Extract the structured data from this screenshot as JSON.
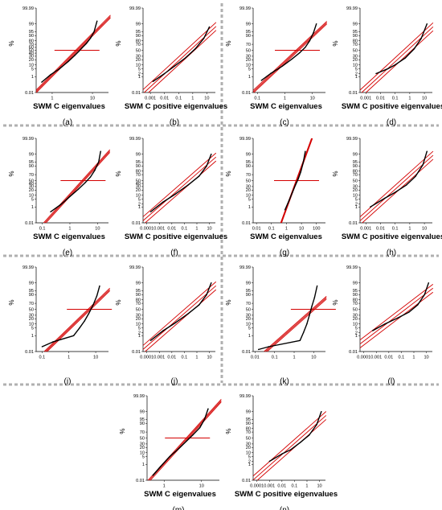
{
  "figure": {
    "colors": {
      "fit": "#d40000",
      "data": "#000000",
      "separator": "#b0b0b0"
    },
    "panels": [
      {
        "id": "a",
        "caption": "(a)",
        "xlabel": "SWM C eigenvalues",
        "ylabel": "%",
        "xticks": [
          "1",
          "10"
        ],
        "xrange": [
          0.4,
          25
        ],
        "yticks": [
          "0.01",
          "1",
          "5",
          "10",
          "20",
          "30",
          "40",
          "50",
          "60",
          "70",
          "80",
          "90",
          "95",
          "99",
          "99.99"
        ],
        "hline": true,
        "samples": [
          [
            0.55,
            0.25
          ],
          [
            0.9,
            1.5
          ],
          [
            1.5,
            5
          ],
          [
            2.5,
            16
          ],
          [
            3.6,
            32
          ],
          [
            4.5,
            45
          ],
          [
            5.5,
            58
          ],
          [
            7,
            72
          ],
          [
            9,
            86
          ],
          [
            11,
            95
          ],
          [
            13,
            99.5
          ]
        ]
      },
      {
        "id": "b",
        "caption": "(b)",
        "xlabel": "SWM C positive eigenvalues",
        "ylabel": "%",
        "xticks": [
          "0.001",
          "0.01",
          "0.1",
          "1",
          "10"
        ],
        "xrange": [
          0.0003,
          40
        ],
        "yticks": [
          "0.01",
          "1",
          "2",
          "5",
          "10",
          "20",
          "30",
          "50",
          "70",
          "80",
          "90",
          "95",
          "99",
          "99.99"
        ],
        "hline": false,
        "samples": [
          [
            0.0015,
            0.3
          ],
          [
            0.01,
            2
          ],
          [
            0.05,
            8
          ],
          [
            0.3,
            25
          ],
          [
            1.5,
            55
          ],
          [
            6,
            85
          ],
          [
            15,
            98
          ]
        ]
      },
      {
        "id": "c",
        "caption": "(c)",
        "xlabel": "SWM C eigenvalues",
        "ylabel": "%",
        "xticks": [
          "0.1",
          "1",
          "10"
        ],
        "xrange": [
          0.07,
          30
        ],
        "yticks": [
          "0.01",
          "1",
          "5",
          "10",
          "20",
          "30",
          "50",
          "70",
          "90",
          "95",
          "99",
          "99.99"
        ],
        "hline": true,
        "samples": [
          [
            0.14,
            0.4
          ],
          [
            0.3,
            2
          ],
          [
            0.8,
            8
          ],
          [
            1.8,
            22
          ],
          [
            3.5,
            42
          ],
          [
            5.5,
            60
          ],
          [
            8,
            80
          ],
          [
            11,
            94
          ],
          [
            14,
            99
          ]
        ]
      },
      {
        "id": "d",
        "caption": "(d)",
        "xlabel": "SWM C positive eigenvalues",
        "ylabel": "%",
        "xticks": [
          "0.001",
          "0.01",
          "0.1",
          "1",
          "10"
        ],
        "xrange": [
          0.0004,
          35
        ],
        "yticks": [
          "0.01",
          "1",
          "2",
          "5",
          "10",
          "20",
          "30",
          "50",
          "70",
          "80",
          "90",
          "95",
          "99",
          "99.99"
        ],
        "hline": false,
        "samples": [
          [
            0.005,
            2
          ],
          [
            0.03,
            5
          ],
          [
            0.1,
            10
          ],
          [
            0.5,
            25
          ],
          [
            2,
            55
          ],
          [
            6,
            85
          ],
          [
            15,
            99
          ]
        ]
      },
      {
        "id": "e",
        "caption": "(e)",
        "xlabel": "SWM C eigenvalues",
        "ylabel": "%",
        "xticks": [
          "0.1",
          "1",
          "10"
        ],
        "xrange": [
          0.06,
          25
        ],
        "yticks": [
          "0.01",
          "1",
          "5",
          "10",
          "20",
          "30",
          "40",
          "50",
          "70",
          "90",
          "95",
          "99",
          "99.99"
        ],
        "hline": true,
        "samples": [
          [
            0.2,
            0.3
          ],
          [
            0.5,
            2
          ],
          [
            1,
            8
          ],
          [
            2,
            22
          ],
          [
            3.5,
            42
          ],
          [
            5.5,
            62
          ],
          [
            8,
            82
          ],
          [
            11,
            95
          ],
          [
            13,
            99.5
          ]
        ]
      },
      {
        "id": "f",
        "caption": "(f)",
        "xlabel": "SWM C positive eigenvalues",
        "ylabel": "%",
        "xticks": [
          "0.0001",
          "0.001",
          "0.01",
          "0.1",
          "1",
          "10"
        ],
        "xrange": [
          5e-05,
          30
        ],
        "yticks": [
          "0.01",
          "1",
          "2",
          "5",
          "10",
          "20",
          "30",
          "40",
          "50",
          "70",
          "80",
          "90",
          "95",
          "99",
          "99.99"
        ],
        "hline": false,
        "samples": [
          [
            0.0002,
            0.3
          ],
          [
            0.002,
            3
          ],
          [
            0.02,
            12
          ],
          [
            0.2,
            35
          ],
          [
            1.5,
            65
          ],
          [
            6,
            90
          ],
          [
            14,
            99
          ]
        ]
      },
      {
        "id": "g",
        "caption": "(g)",
        "xlabel": "SWM C eigenvalues",
        "ylabel": "%",
        "xticks": [
          "0.01",
          "0.1",
          "1",
          "10",
          "100"
        ],
        "xrange": [
          0.006,
          400
        ],
        "yticks": [
          "0.01",
          "1",
          "5",
          "10",
          "20",
          "30",
          "50",
          "70",
          "90",
          "95",
          "99",
          "99.99"
        ],
        "hline": true,
        "samples": [
          [
            0.8,
            0.5
          ],
          [
            1.5,
            4
          ],
          [
            2.5,
            15
          ],
          [
            4,
            35
          ],
          [
            6,
            55
          ],
          [
            9,
            78
          ],
          [
            13,
            94
          ],
          [
            18,
            99.5
          ]
        ]
      },
      {
        "id": "h",
        "caption": "(h)",
        "xlabel": "SWM C positive eigenvalues",
        "ylabel": "%",
        "xticks": [
          "0.001",
          "0.01",
          "0.1",
          "1",
          "10"
        ],
        "xrange": [
          0.0004,
          35
        ],
        "yticks": [
          "0.01",
          "1",
          "2",
          "5",
          "10",
          "20",
          "30",
          "50",
          "70",
          "80",
          "90",
          "95",
          "99",
          "99.99"
        ],
        "hline": false,
        "samples": [
          [
            0.002,
            1
          ],
          [
            0.02,
            6
          ],
          [
            0.1,
            15
          ],
          [
            0.6,
            35
          ],
          [
            2.5,
            65
          ],
          [
            8,
            92
          ],
          [
            15,
            99.5
          ]
        ]
      },
      {
        "id": "i",
        "caption": "(i)",
        "xlabel": "",
        "ylabel": "%",
        "xticks": [
          "0.1",
          "1",
          "10"
        ],
        "xrange": [
          0.06,
          30
        ],
        "yticks": [
          "0.01",
          "1",
          "5",
          "10",
          "20",
          "30",
          "50",
          "70",
          "90",
          "95",
          "99",
          "99.99"
        ],
        "hline": true,
        "samples": [
          [
            0.1,
            0.05
          ],
          [
            0.25,
            0.2
          ],
          [
            1.5,
            1
          ],
          [
            2.5,
            5
          ],
          [
            3.8,
            15
          ],
          [
            5.5,
            35
          ],
          [
            8,
            65
          ],
          [
            11,
            88
          ],
          [
            14,
            98
          ]
        ]
      },
      {
        "id": "j",
        "caption": "(j)",
        "xlabel": "",
        "ylabel": "%",
        "xticks": [
          "0.0001",
          "0.001",
          "0.01",
          "0.1",
          "1",
          "10"
        ],
        "xrange": [
          5e-05,
          30
        ],
        "yticks": [
          "0.01",
          "1",
          "2",
          "5",
          "10",
          "20",
          "30",
          "50",
          "70",
          "80",
          "90",
          "95",
          "99",
          "99.99"
        ],
        "hline": false,
        "samples": [
          [
            0.0002,
            0.3
          ],
          [
            0.002,
            3
          ],
          [
            0.02,
            12
          ],
          [
            0.2,
            35
          ],
          [
            1.5,
            65
          ],
          [
            6,
            90
          ],
          [
            14,
            99
          ]
        ]
      },
      {
        "id": "k",
        "caption": "(k)",
        "xlabel": "",
        "ylabel": "%",
        "xticks": [
          "0.01",
          "0.1",
          "1",
          "10"
        ],
        "xrange": [
          0.008,
          40
        ],
        "yticks": [
          "0.01",
          "1",
          "5",
          "10",
          "20",
          "30",
          "50",
          "70",
          "90",
          "95",
          "99",
          "99.99"
        ],
        "hline": true,
        "samples": [
          [
            0.015,
            0.02
          ],
          [
            0.05,
            0.05
          ],
          [
            2,
            0.3
          ],
          [
            3,
            2
          ],
          [
            4.5,
            10
          ],
          [
            6,
            30
          ],
          [
            8,
            60
          ],
          [
            11,
            85
          ],
          [
            15,
            98
          ]
        ]
      },
      {
        "id": "l",
        "caption": "(l)",
        "xlabel": "",
        "ylabel": "%",
        "xticks": [
          "0.0001",
          "0.001",
          "0.01",
          "0.1",
          "1",
          "10"
        ],
        "xrange": [
          5e-05,
          30
        ],
        "yticks": [
          "0.01",
          "1",
          "2",
          "5",
          "10",
          "20",
          "30",
          "50",
          "70",
          "80",
          "90",
          "95",
          "99",
          "99.99"
        ],
        "hline": false,
        "samples": [
          [
            0.0005,
            3
          ],
          [
            0.005,
            10
          ],
          [
            0.05,
            22
          ],
          [
            0.4,
            40
          ],
          [
            2,
            65
          ],
          [
            7,
            90
          ],
          [
            15,
            99
          ]
        ]
      },
      {
        "id": "m",
        "caption": "(m)",
        "xlabel": "SWM C eigenvalues",
        "ylabel": "%",
        "xticks": [
          "1",
          "10"
        ],
        "xrange": [
          0.35,
          30
        ],
        "yticks": [
          "0.01",
          "1",
          "5",
          "10",
          "20",
          "30",
          "50",
          "70",
          "90",
          "95",
          "99",
          "99.99"
        ],
        "hline": true,
        "samples": [
          [
            0.5,
            0.05
          ],
          [
            0.8,
            0.6
          ],
          [
            1.4,
            5
          ],
          [
            2.5,
            18
          ],
          [
            4,
            40
          ],
          [
            6,
            62
          ],
          [
            9,
            82
          ],
          [
            12,
            95
          ],
          [
            15,
            99.5
          ]
        ]
      },
      {
        "id": "n",
        "caption": "(n)",
        "xlabel": "SWM C positive eigenvalues",
        "ylabel": "%",
        "xticks": [
          "0.0001",
          "0.001",
          "0.01",
          "0.1",
          "1",
          "10"
        ],
        "xrange": [
          5e-05,
          30
        ],
        "yticks": [
          "0.01",
          "1",
          "2",
          "5",
          "10",
          "20",
          "30",
          "50",
          "70",
          "80",
          "90",
          "95",
          "99",
          "99.99"
        ],
        "hline": false,
        "samples": [
          [
            0.001,
            2
          ],
          [
            0.01,
            8
          ],
          [
            0.05,
            15
          ],
          [
            0.3,
            35
          ],
          [
            1.5,
            60
          ],
          [
            6,
            88
          ],
          [
            14,
            99
          ]
        ]
      }
    ]
  }
}
